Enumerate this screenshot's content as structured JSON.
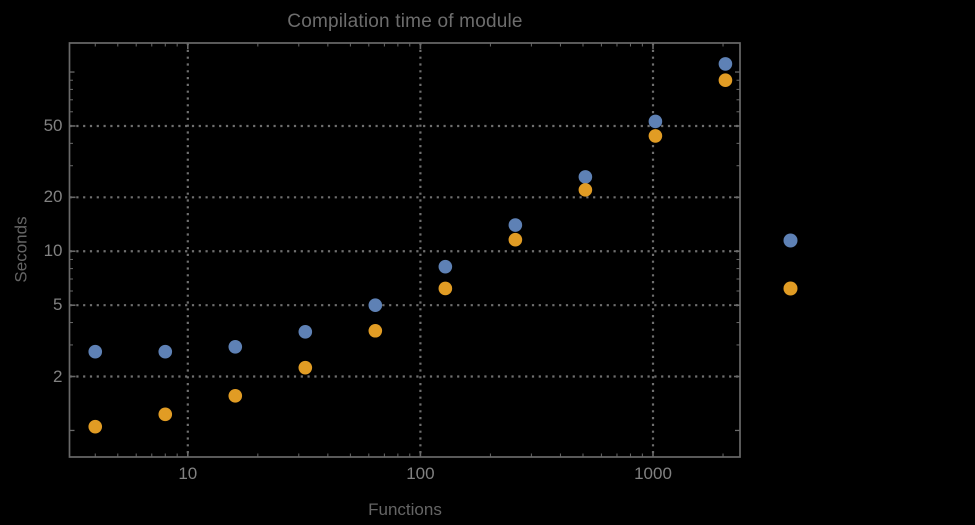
{
  "colors": {
    "background": "#000000",
    "frame": "#696969",
    "grid": "#6f6f6f",
    "tick": "#696969",
    "title_text": "#6d6d6d",
    "axis_label_text": "#656565",
    "tick_label_text": "#818181",
    "series_blue": "#5e81b5",
    "series_orange": "#e19c24"
  },
  "chart_data": {
    "type": "scatter",
    "title": "Compilation time of module",
    "xlabel": "Functions",
    "ylabel": "Seconds",
    "x_scale": "log",
    "y_scale": "log",
    "grid": "dotted",
    "legend_position": "right-outside",
    "x_range": [
      3.1,
      2366
    ],
    "y_range": [
      0.711,
      145.2
    ],
    "x_ticks_labeled": [
      10,
      100,
      1000
    ],
    "y_ticks_labeled": [
      2,
      5,
      10,
      20,
      50
    ],
    "x_ticks_minor": [
      4,
      5,
      6,
      7,
      8,
      9,
      20,
      30,
      40,
      50,
      60,
      70,
      80,
      90,
      200,
      300,
      400,
      500,
      600,
      700,
      800,
      900,
      2000
    ],
    "y_ticks_unlabeled_major": [
      1,
      100
    ],
    "y_ticks_minor": [
      3,
      4,
      6,
      7,
      8,
      9,
      30,
      40,
      60,
      70,
      80,
      90
    ],
    "x": [
      4,
      8,
      16,
      32,
      64,
      128,
      256,
      512,
      1024,
      2048
    ],
    "series": [
      {
        "name": "blue",
        "color": "#5e81b5",
        "values": [
          2.75,
          2.75,
          2.93,
          3.55,
          5.0,
          8.2,
          14.0,
          26.0,
          53.0,
          111.0
        ]
      },
      {
        "name": "orange",
        "color": "#e19c24",
        "values": [
          1.05,
          1.23,
          1.56,
          2.24,
          3.6,
          6.2,
          11.6,
          22.0,
          44.0,
          90.0
        ]
      }
    ],
    "legend_markers": [
      {
        "series": "blue",
        "color": "#5e81b5"
      },
      {
        "series": "orange",
        "color": "#e19c24"
      }
    ]
  }
}
